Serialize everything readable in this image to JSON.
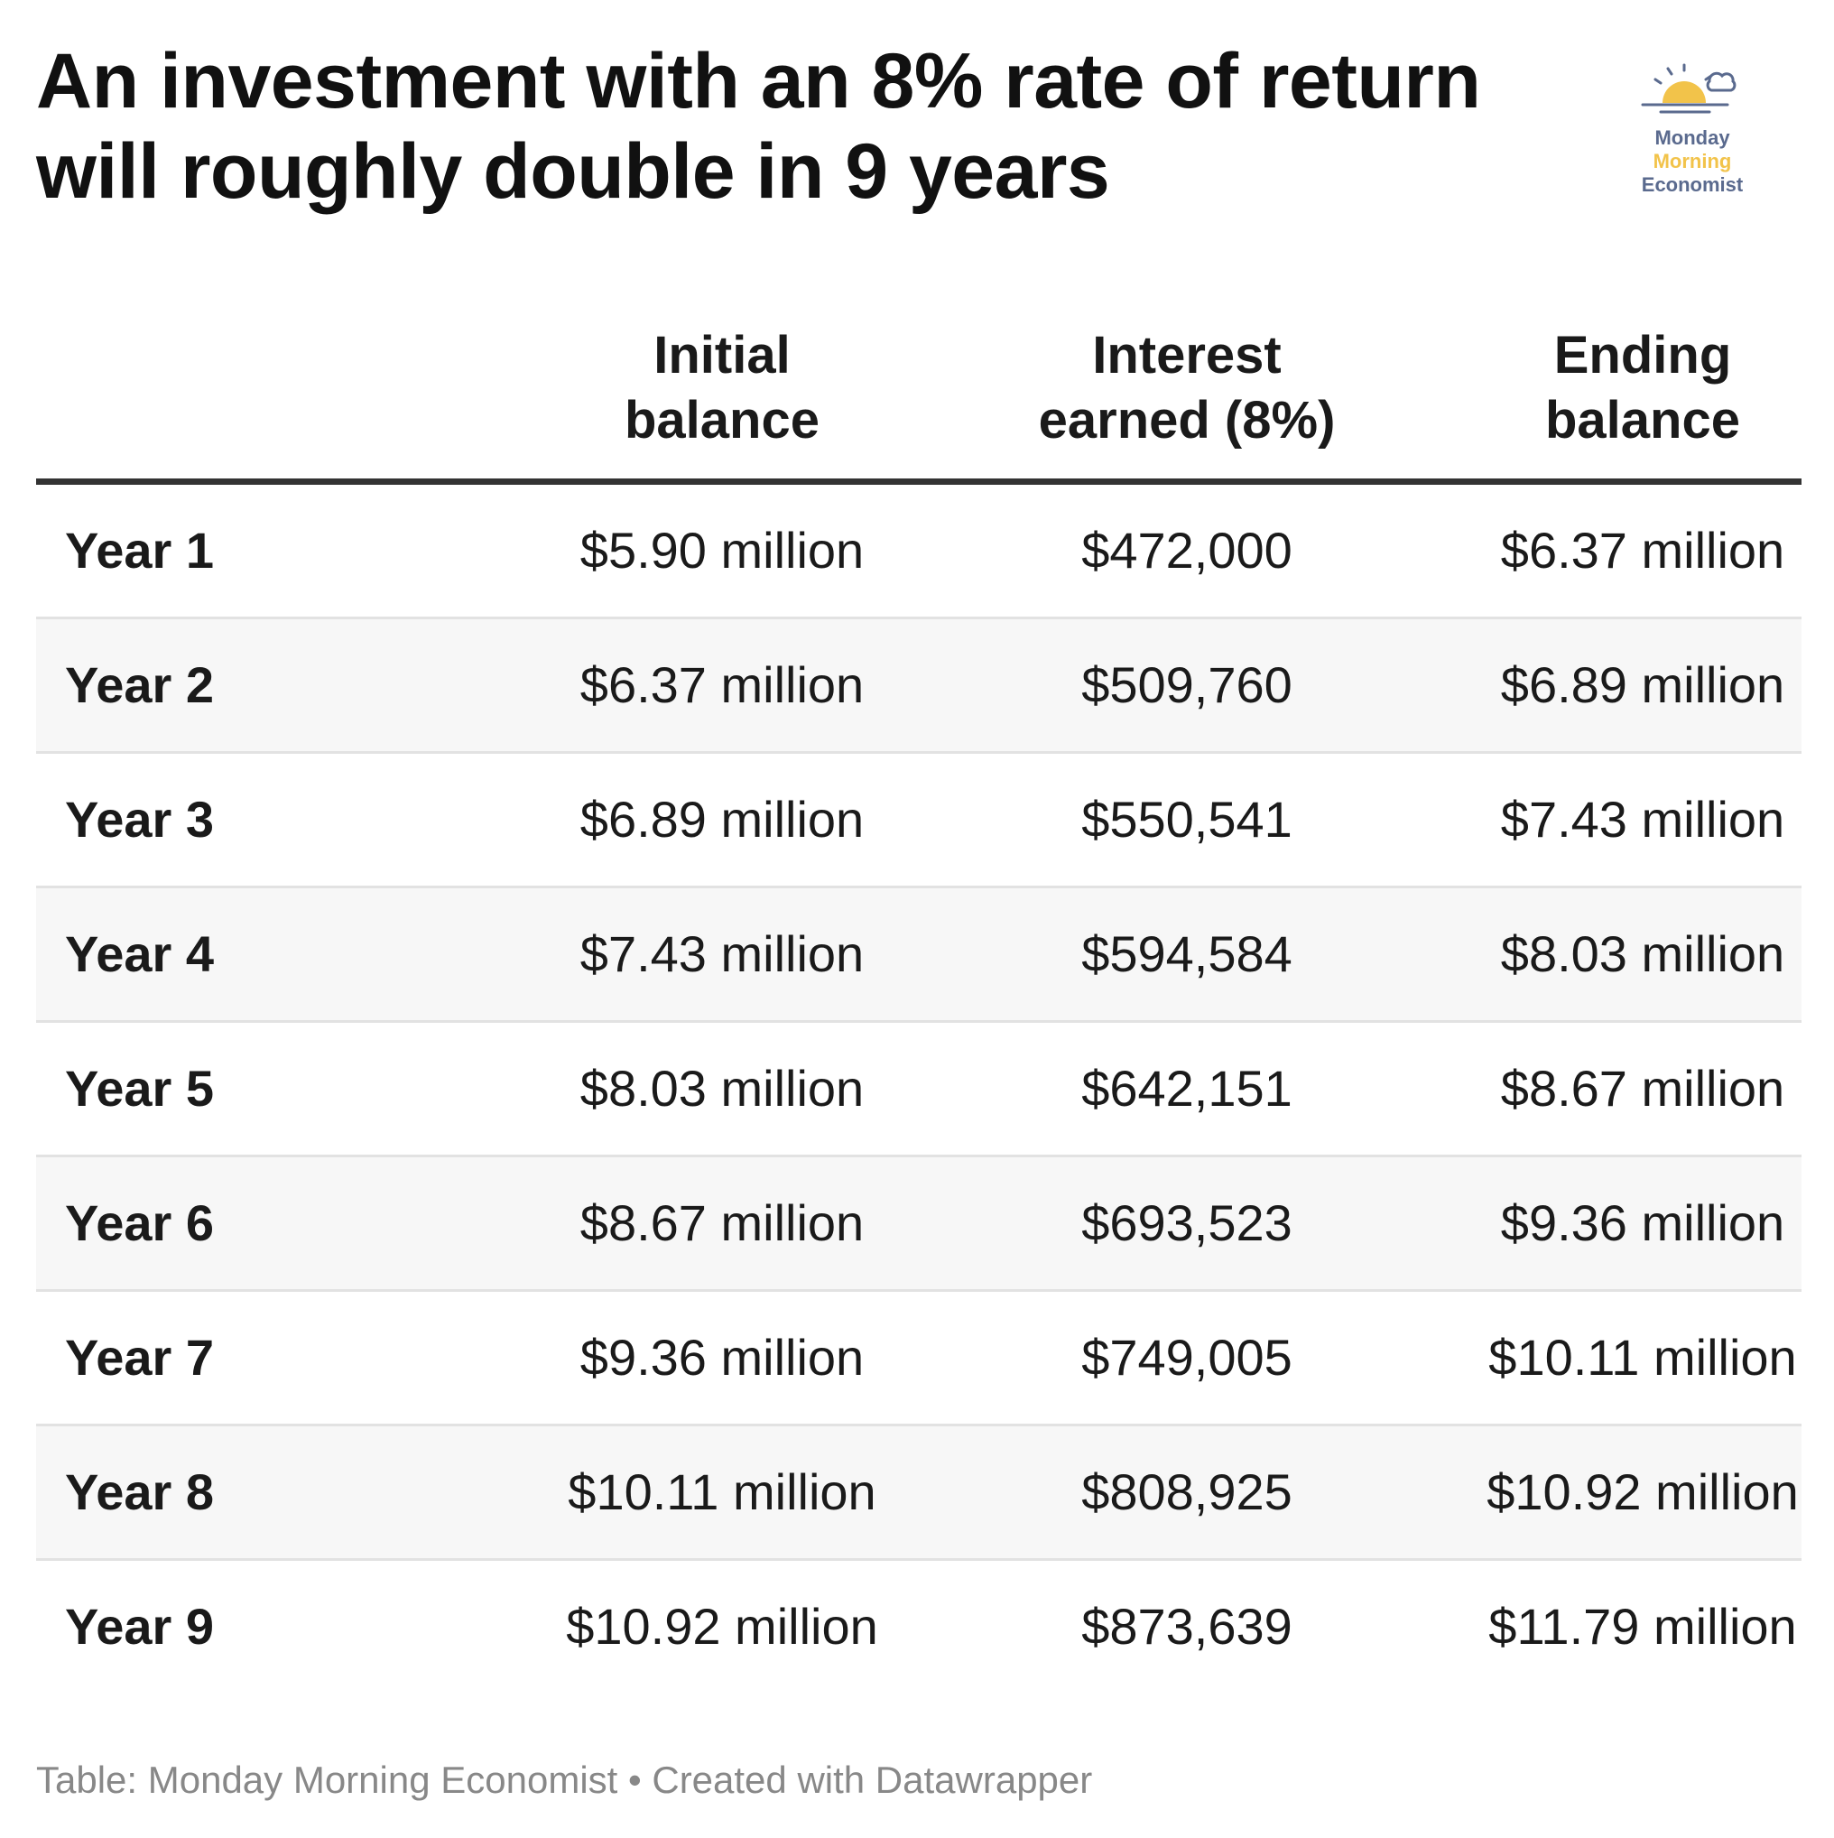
{
  "chart_data": {
    "type": "table",
    "title": "An investment with an 8% rate of return will roughly double in 9 years",
    "columns": [
      "",
      "Initial balance",
      "Interest earned (8%)",
      "Ending balance"
    ],
    "header": {
      "col1": [
        "Initial",
        "balance"
      ],
      "col2": [
        "Interest",
        "earned (8%)"
      ],
      "col3": [
        "Ending",
        "balance"
      ]
    },
    "rows": [
      {
        "label": "Year 1",
        "initial": "$5.90 million",
        "interest": "$472,000",
        "ending": "$6.37 million"
      },
      {
        "label": "Year 2",
        "initial": "$6.37 million",
        "interest": "$509,760",
        "ending": "$6.89 million"
      },
      {
        "label": "Year 3",
        "initial": "$6.89 million",
        "interest": "$550,541",
        "ending": "$7.43 million"
      },
      {
        "label": "Year 4",
        "initial": "$7.43 million",
        "interest": "$594,584",
        "ending": "$8.03 million"
      },
      {
        "label": "Year 5",
        "initial": "$8.03 million",
        "interest": "$642,151",
        "ending": "$8.67 million"
      },
      {
        "label": "Year 6",
        "initial": "$8.67 million",
        "interest": "$693,523",
        "ending": "$9.36 million"
      },
      {
        "label": "Year 7",
        "initial": "$9.36 million",
        "interest": "$749,005",
        "ending": "$10.11 million"
      },
      {
        "label": "Year 8",
        "initial": "$10.11 million",
        "interest": "$808,925",
        "ending": "$10.92 million"
      },
      {
        "label": "Year 9",
        "initial": "$10.92 million",
        "interest": "$873,639",
        "ending": "$11.79 million"
      }
    ],
    "footer": "Table: Monday Morning Economist • Created with Datawrapper"
  },
  "logo": {
    "icon": "sunrise-icon",
    "line1": "Monday",
    "line2": "Morning",
    "line3": "Economist",
    "colors": {
      "navy": "#5a6a8e",
      "sun": "#f2c34a"
    }
  }
}
